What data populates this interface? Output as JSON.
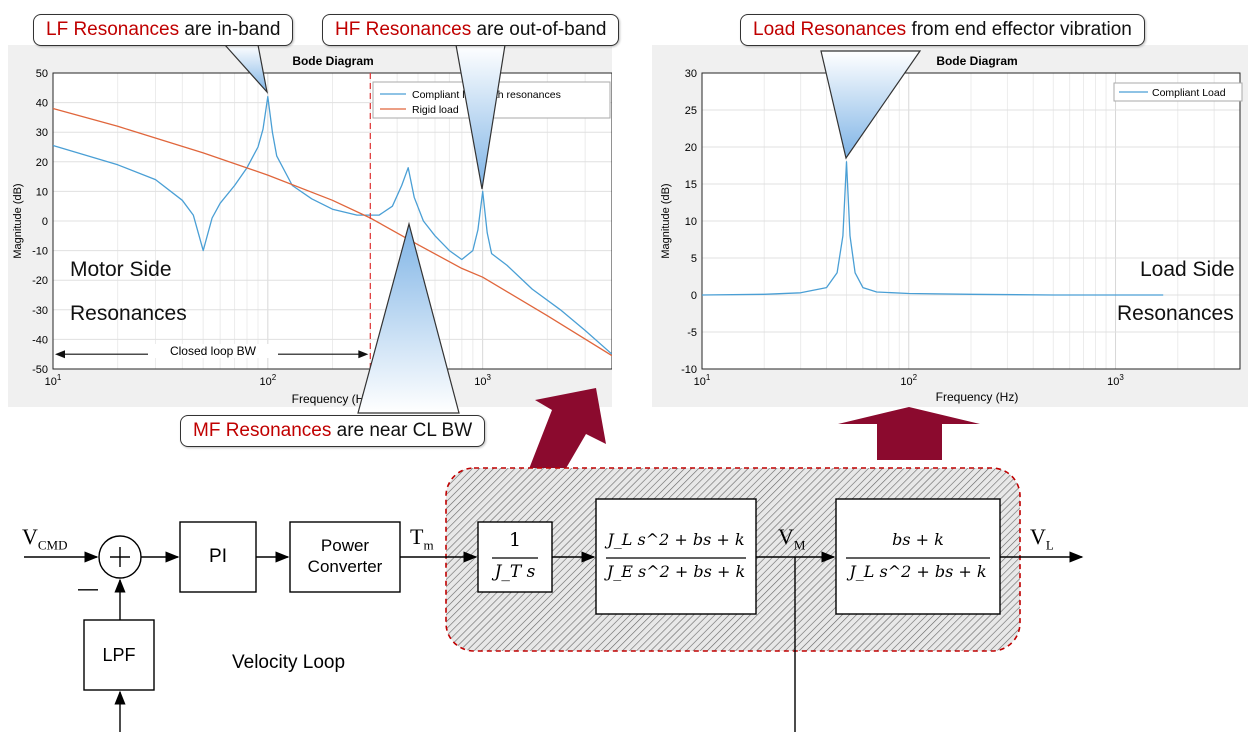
{
  "callouts": {
    "lf": {
      "highlight": "LF Resonances",
      "rest": " are in-band"
    },
    "hf": {
      "highlight": "HF Resonances",
      "rest": " are out-of-band"
    },
    "load": {
      "highlight": "Load Resonances",
      "rest": " from end effector vibration"
    },
    "mf": {
      "highlight": "MF Resonances",
      "rest": " are near CL BW"
    }
  },
  "left_plot_labels": {
    "line1": "Motor Side",
    "line2": "Resonances",
    "bw_label": "Closed loop BW"
  },
  "right_plot_labels": {
    "line1": "Load Side",
    "line2": "Resonances"
  },
  "chart_data": [
    {
      "type": "line",
      "title": "Bode Diagram",
      "xlabel": "Frequency (Hz)",
      "ylabel": "Magnitude (dB)",
      "xscale": "log",
      "xlim": [
        10,
        4000
      ],
      "ylim": [
        -50,
        50
      ],
      "yticks": [
        -50,
        -40,
        -30,
        -20,
        -10,
        0,
        10,
        20,
        30,
        40,
        50
      ],
      "xtick_labels": [
        "10^1",
        "10^2",
        "10^3"
      ],
      "grid": true,
      "legend": "top-right",
      "series": [
        {
          "name": "Compliant load with resonances",
          "color": "#4a9fd5",
          "x": [
            10,
            20,
            30,
            40,
            45,
            50,
            55,
            60,
            70,
            80,
            90,
            95,
            100,
            105,
            110,
            130,
            160,
            200,
            260,
            330,
            380,
            420,
            450,
            480,
            530,
            600,
            700,
            800,
            900,
            950,
            1000,
            1050,
            1100,
            1300,
            1700,
            2300,
            3000,
            4000
          ],
          "y": [
            25.5,
            19,
            14,
            7,
            2,
            -10,
            1,
            6,
            12,
            18,
            25,
            31,
            42,
            30,
            22,
            12,
            7.5,
            4,
            2,
            2,
            5,
            12,
            18,
            8,
            0,
            -5,
            -10,
            -13,
            -10,
            -3,
            10,
            -4,
            -11,
            -15,
            -23,
            -30,
            -37,
            -45
          ]
        },
        {
          "name": "Rigid load",
          "color": "#e0663c",
          "x": [
            10,
            20,
            50,
            100,
            200,
            300,
            500,
            800,
            1000,
            2000,
            4000
          ],
          "y": [
            38,
            32,
            23,
            15.5,
            7,
            1,
            -8,
            -16,
            -19,
            -32,
            -45.5
          ]
        }
      ],
      "annotations": [
        "Closed loop BW ~ 300 Hz (dashed)"
      ]
    },
    {
      "type": "line",
      "title": "Bode Diagram",
      "xlabel": "Frequency (Hz)",
      "ylabel": "Magnitude (dB)",
      "xscale": "log",
      "xlim": [
        10,
        4000
      ],
      "ylim": [
        -10,
        30
      ],
      "yticks": [
        -10,
        -5,
        0,
        5,
        10,
        15,
        20,
        25,
        30
      ],
      "xtick_labels": [
        "10^1",
        "10^2",
        "10^3"
      ],
      "grid": true,
      "legend": "top-right",
      "series": [
        {
          "name": "Compliant Load",
          "color": "#4a9fd5",
          "x": [
            10,
            20,
            30,
            40,
            45,
            48,
            50,
            52,
            55,
            60,
            70,
            100,
            200,
            500,
            1000,
            1700
          ],
          "y": [
            0,
            0.1,
            0.3,
            1,
            3,
            8,
            18,
            8,
            3,
            1,
            0.4,
            0.2,
            0.1,
            0,
            0,
            0
          ]
        }
      ]
    }
  ],
  "block_diagram": {
    "input_label": "V",
    "input_sub": "CMD",
    "summer_plus": "+",
    "summer_minus": "—",
    "pi": "PI",
    "power_converter_line1": "Power",
    "power_converter_line2": "Converter",
    "torque_label": "T",
    "torque_sub": "m",
    "integrator_num": "1",
    "integrator_den": "J_T s",
    "plant1_num": "J_L s^2 + bs + k",
    "plant1_den": "J_E s^2 + bs + k",
    "vm_label": "V",
    "vm_sub": "M",
    "plant2_num": "bs + k",
    "plant2_den": "J_L s^2 + bs + k",
    "vl_label": "V",
    "vl_sub": "L",
    "lpf": "LPF",
    "loop_label": "Velocity Loop"
  }
}
